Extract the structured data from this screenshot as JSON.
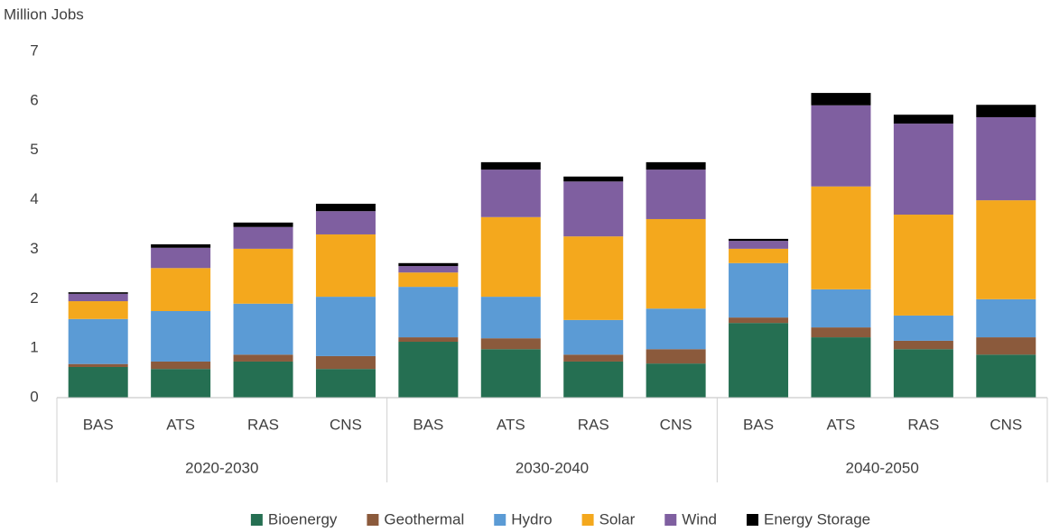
{
  "chart_data": {
    "type": "stacked_bar",
    "y_label": "Million Jobs",
    "groups": [
      "2020-2030",
      "2030-2040",
      "2040-2050"
    ],
    "categories": [
      "BAS",
      "ATS",
      "RAS",
      "CNS",
      "BAS",
      "ATS",
      "RAS",
      "CNS",
      "BAS",
      "ATS",
      "RAS",
      "CNS"
    ],
    "ylim": [
      0,
      7
    ],
    "yticks": [
      0,
      1,
      2,
      3,
      4,
      5,
      6,
      7
    ],
    "series": [
      {
        "name": "Bioenergy",
        "color": "#256f52",
        "values": [
          0.62,
          0.58,
          0.73,
          0.58,
          1.13,
          0.98,
          0.73,
          0.69,
          1.51,
          1.22,
          0.98,
          0.87
        ]
      },
      {
        "name": "Geothermal",
        "color": "#8b5a3c",
        "values": [
          0.06,
          0.15,
          0.14,
          0.26,
          0.09,
          0.22,
          0.14,
          0.29,
          0.11,
          0.2,
          0.17,
          0.35
        ]
      },
      {
        "name": "Hydro",
        "color": "#5b9bd5",
        "values": [
          0.91,
          1.02,
          1.03,
          1.2,
          1.02,
          0.84,
          0.7,
          0.82,
          1.1,
          0.77,
          0.51,
          0.77
        ]
      },
      {
        "name": "Solar",
        "color": "#f4a81d",
        "values": [
          0.36,
          0.87,
          1.11,
          1.26,
          0.29,
          1.61,
          1.69,
          1.81,
          0.29,
          2.08,
          2.04,
          2.0
        ]
      },
      {
        "name": "Wind",
        "color": "#7f5fa0",
        "values": [
          0.15,
          0.41,
          0.44,
          0.47,
          0.13,
          0.96,
          1.11,
          1.0,
          0.16,
          1.64,
          1.84,
          1.68
        ]
      },
      {
        "name": "Energy Storage",
        "color": "#000000",
        "values": [
          0.03,
          0.07,
          0.09,
          0.15,
          0.06,
          0.15,
          0.1,
          0.15,
          0.04,
          0.25,
          0.18,
          0.25
        ]
      }
    ]
  }
}
